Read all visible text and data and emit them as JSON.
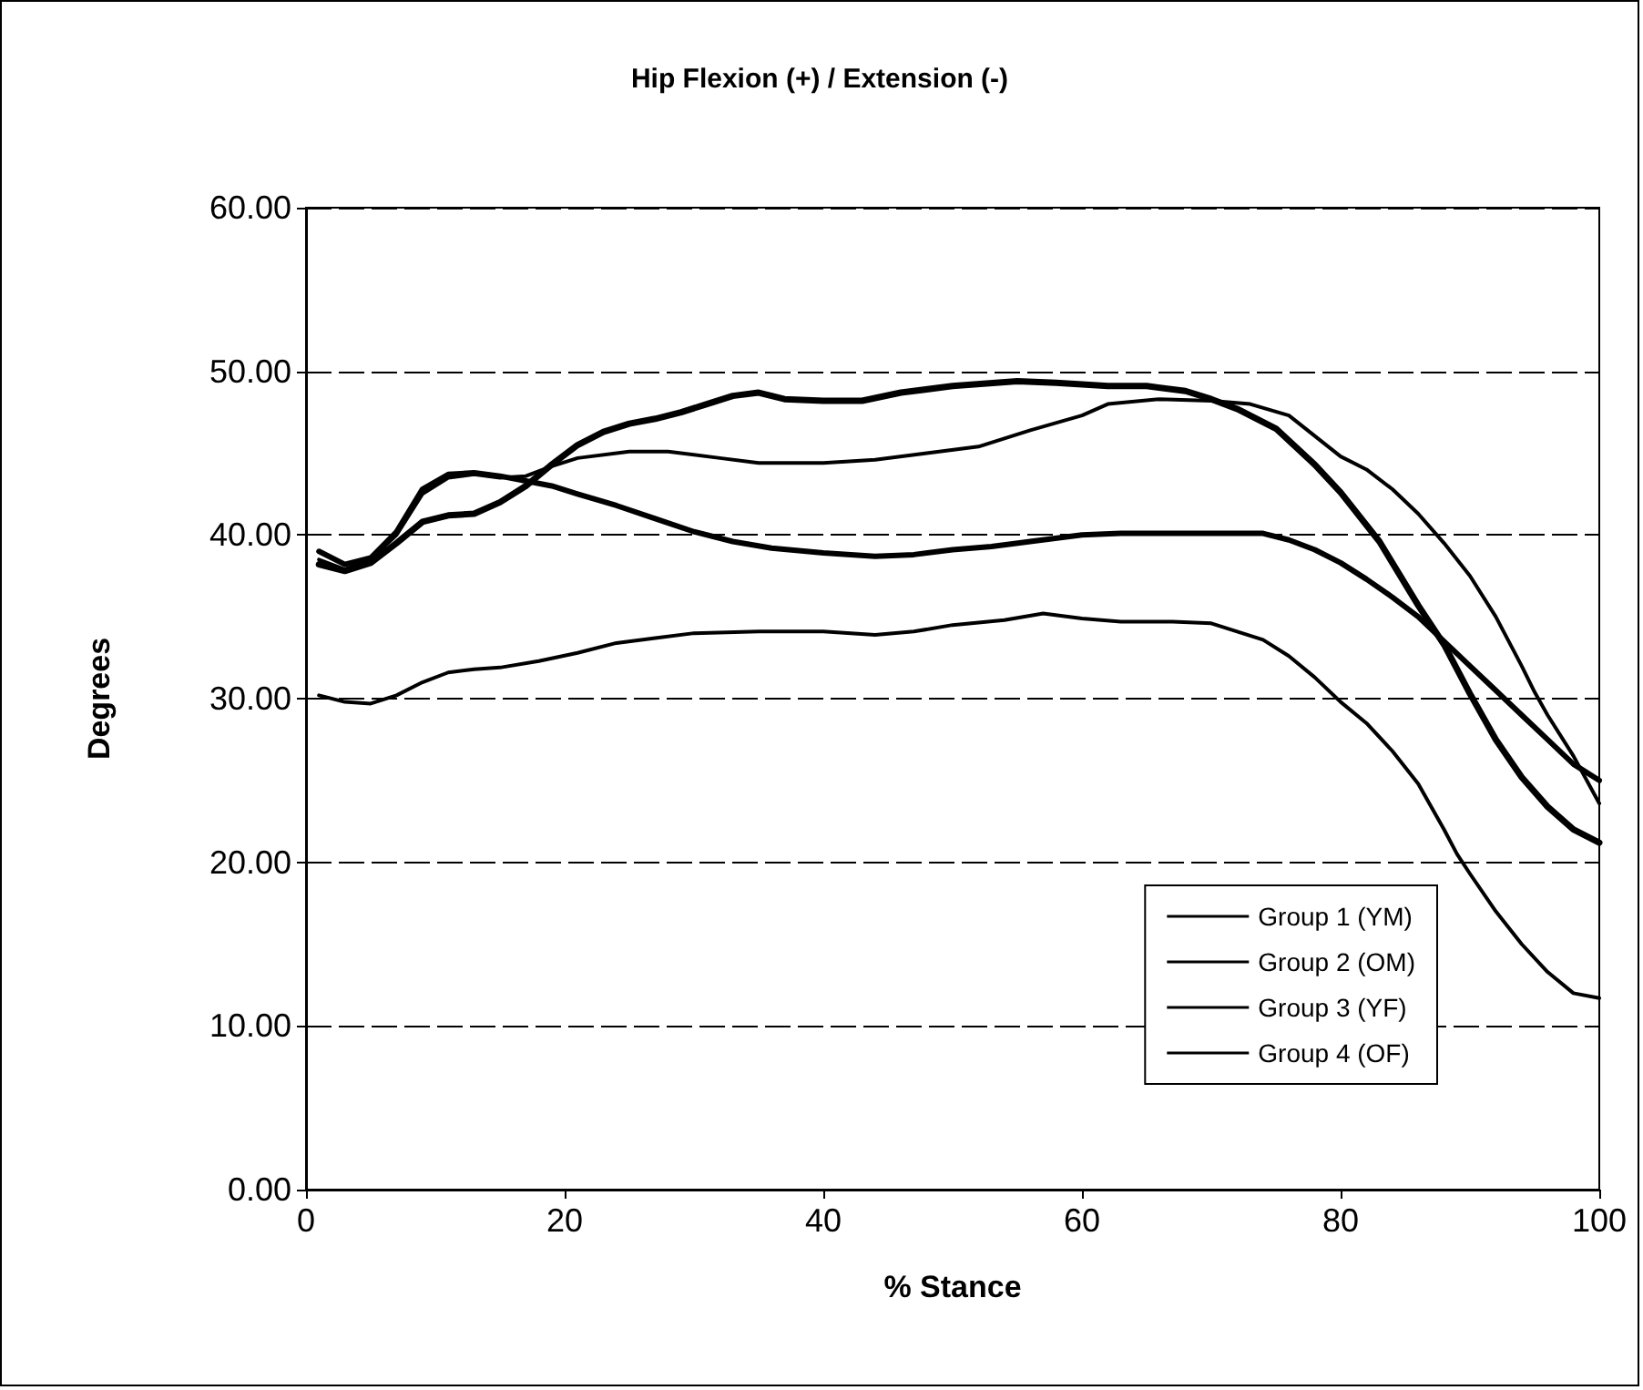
{
  "chart_data": {
    "type": "line",
    "title": "Hip Flexion (+) / Extension (-)",
    "xlabel": "% Stance",
    "ylabel": "Degrees",
    "xlim": [
      0,
      100
    ],
    "xticks": [
      0,
      20,
      40,
      60,
      80,
      100
    ],
    "ylim": [
      0,
      60
    ],
    "yticks": [
      {
        "value": 0,
        "label": "0.00"
      },
      {
        "value": 10,
        "label": "10.00"
      },
      {
        "value": 20,
        "label": "20.00"
      },
      {
        "value": 30,
        "label": "30.00"
      },
      {
        "value": 40,
        "label": "40.00"
      },
      {
        "value": 50,
        "label": "50.00"
      },
      {
        "value": 60,
        "label": "60.00"
      }
    ],
    "grid": "y",
    "legend": "bottom right",
    "marker": "none",
    "line_style": "solid",
    "series": [
      {
        "name": "Group 1 (YM)",
        "color": "#000000",
        "x": [
          1,
          3,
          5,
          7,
          9,
          11,
          13,
          15,
          18,
          21,
          24,
          27,
          30,
          35,
          40,
          44,
          47,
          50,
          54,
          57,
          60,
          63,
          67,
          70,
          72,
          74,
          76,
          78,
          80,
          82,
          84,
          86,
          88,
          89,
          90,
          92,
          94,
          96,
          98,
          100
        ],
        "values": [
          30.2,
          29.8,
          29.7,
          30.2,
          31,
          31.6,
          31.8,
          31.9,
          32.3,
          32.8,
          33.4,
          33.7,
          34,
          34.1,
          34.1,
          33.9,
          34.1,
          34.5,
          34.8,
          35.2,
          34.9,
          34.7,
          34.7,
          34.6,
          34.1,
          33.6,
          32.6,
          31.3,
          29.8,
          28.5,
          26.8,
          24.8,
          22,
          20.5,
          19.3,
          17,
          15,
          13.3,
          12,
          11.7
        ]
      },
      {
        "name": "Group 2 (OM)",
        "color": "#000000",
        "x": [
          1,
          3,
          5,
          7,
          9,
          11,
          13,
          15,
          17,
          19,
          21,
          23,
          25,
          27,
          29,
          31,
          33,
          35,
          37,
          40,
          43,
          46,
          50,
          55,
          58,
          62,
          65,
          68,
          70,
          72,
          75,
          78,
          80,
          83,
          86,
          88,
          90,
          92,
          94,
          96,
          98,
          100
        ],
        "values": [
          38.2,
          37.8,
          38.3,
          39.5,
          40.8,
          41.2,
          41.3,
          42,
          43,
          44.3,
          45.5,
          46.3,
          46.8,
          47.1,
          47.5,
          48,
          48.5,
          48.7,
          48.3,
          48.2,
          48.2,
          48.7,
          49.1,
          49.4,
          49.3,
          49.1,
          49.1,
          48.8,
          48.3,
          47.7,
          46.5,
          44.3,
          42.6,
          39.6,
          35.7,
          33.3,
          30.3,
          27.5,
          25.2,
          23.4,
          22,
          21.2
        ]
      },
      {
        "name": "Group 3 (YF)",
        "color": "#000000",
        "x": [
          1,
          3,
          5,
          7,
          9,
          11,
          13,
          15,
          17,
          19,
          21,
          25,
          28,
          32,
          35,
          40,
          44,
          48,
          52,
          56,
          60,
          62,
          66,
          70,
          73,
          76,
          80,
          82,
          84,
          86,
          88,
          90,
          92,
          94,
          95,
          96,
          98,
          100
        ],
        "values": [
          38.5,
          37.9,
          38.5,
          40,
          42.5,
          43.5,
          43.7,
          43.5,
          43.6,
          44.2,
          44.7,
          45.1,
          45.1,
          44.7,
          44.4,
          44.4,
          44.6,
          45,
          45.4,
          46.4,
          47.3,
          48,
          48.3,
          48.2,
          48,
          47.3,
          44.8,
          44,
          42.8,
          41.3,
          39.5,
          37.5,
          35,
          32,
          30.4,
          29,
          26.5,
          23.6
        ]
      },
      {
        "name": "Group 4 (OF)",
        "color": "#000000",
        "x": [
          1,
          3,
          5,
          7,
          9,
          11,
          13,
          15,
          17,
          19,
          21,
          24,
          27,
          30,
          33,
          36,
          40,
          44,
          47,
          50,
          53,
          56,
          60,
          63,
          66,
          70,
          74,
          76,
          78,
          80,
          82,
          84,
          86,
          88,
          90,
          92,
          94,
          96,
          98,
          100
        ],
        "values": [
          39,
          38.2,
          38.6,
          40.2,
          42.8,
          43.7,
          43.8,
          43.6,
          43.3,
          43,
          42.5,
          41.8,
          41,
          40.2,
          39.6,
          39.2,
          38.9,
          38.7,
          38.8,
          39.1,
          39.3,
          39.6,
          40,
          40.1,
          40.1,
          40.1,
          40.1,
          39.7,
          39.1,
          38.3,
          37.3,
          36.2,
          35,
          33.5,
          32,
          30.5,
          29,
          27.5,
          26,
          25
        ]
      }
    ]
  }
}
